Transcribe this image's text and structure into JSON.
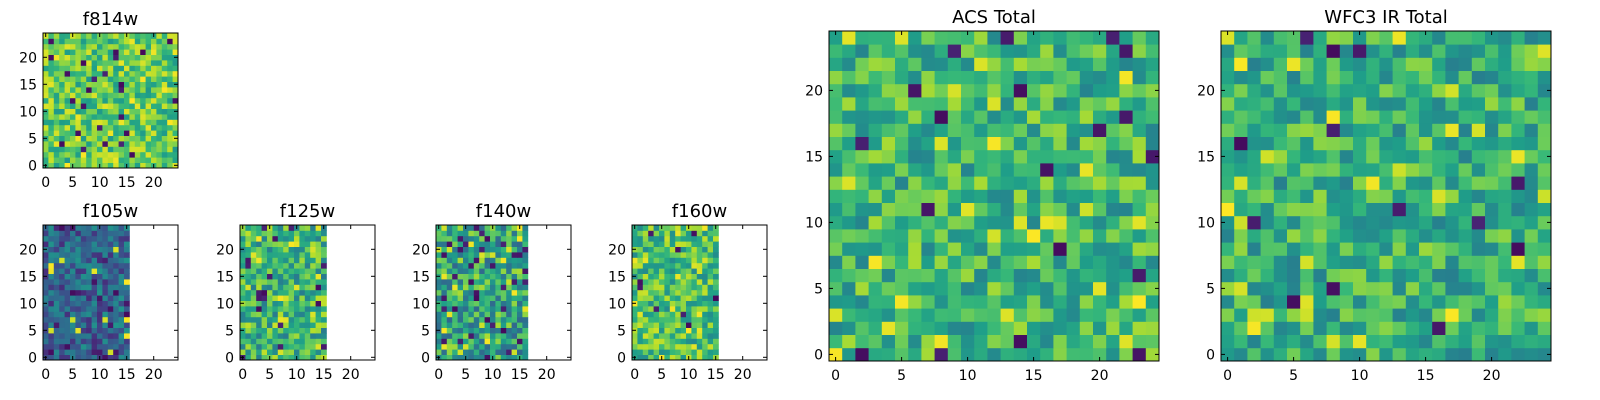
{
  "chart_data": [
    {
      "type": "heatmap",
      "title": "f814w",
      "xlim": [
        0,
        24
      ],
      "ylim": [
        0,
        24
      ],
      "data_x_max": 24,
      "xticks": [
        0,
        5,
        10,
        15,
        20
      ],
      "yticks": [
        0,
        5,
        10,
        15,
        20
      ],
      "seed": 7,
      "mean": 0.74,
      "spread": 0.42,
      "dark_prob": 0.03,
      "bright_prob": 0.07
    },
    {
      "type": "heatmap",
      "title": "f105w",
      "xlim": [
        0,
        24
      ],
      "ylim": [
        0,
        24
      ],
      "data_x_max": 15,
      "xticks": [
        0,
        5,
        10,
        15,
        20
      ],
      "yticks": [
        0,
        5,
        10,
        15,
        20
      ],
      "seed": 11,
      "mean": 0.32,
      "spread": 0.4,
      "dark_prob": 0.05,
      "bright_prob": 0.02
    },
    {
      "type": "heatmap",
      "title": "f125w",
      "xlim": [
        0,
        24
      ],
      "ylim": [
        0,
        24
      ],
      "data_x_max": 15,
      "xticks": [
        0,
        5,
        10,
        15,
        20
      ],
      "yticks": [
        0,
        5,
        10,
        15,
        20
      ],
      "seed": 19,
      "mean": 0.66,
      "spread": 0.5,
      "dark_prob": 0.04,
      "bright_prob": 0.05
    },
    {
      "type": "heatmap",
      "title": "f140w",
      "xlim": [
        0,
        24
      ],
      "ylim": [
        0,
        24
      ],
      "data_x_max": 16,
      "xticks": [
        0,
        5,
        10,
        15,
        20
      ],
      "yticks": [
        0,
        5,
        10,
        15,
        20
      ],
      "seed": 23,
      "mean": 0.6,
      "spread": 0.55,
      "dark_prob": 0.06,
      "bright_prob": 0.06
    },
    {
      "type": "heatmap",
      "title": "f160w",
      "xlim": [
        0,
        24
      ],
      "ylim": [
        0,
        24
      ],
      "data_x_max": 15,
      "xticks": [
        0,
        5,
        10,
        15,
        20
      ],
      "yticks": [
        0,
        5,
        10,
        15,
        20
      ],
      "seed": 31,
      "mean": 0.7,
      "spread": 0.45,
      "dark_prob": 0.03,
      "bright_prob": 0.05
    },
    {
      "type": "heatmap",
      "title": "ACS Total",
      "xlim": [
        0,
        24
      ],
      "ylim": [
        0,
        24
      ],
      "data_x_max": 24,
      "xticks": [
        0,
        5,
        10,
        15,
        20
      ],
      "yticks": [
        0,
        5,
        10,
        15,
        20
      ],
      "seed": 41,
      "mean": 0.66,
      "spread": 0.42,
      "dark_prob": 0.025,
      "bright_prob": 0.05
    },
    {
      "type": "heatmap",
      "title": "WFC3 IR Total",
      "xlim": [
        0,
        24
      ],
      "ylim": [
        0,
        24
      ],
      "data_x_max": 24,
      "xticks": [
        0,
        5,
        10,
        15,
        20
      ],
      "yticks": [
        0,
        5,
        10,
        15,
        20
      ],
      "seed": 53,
      "mean": 0.64,
      "spread": 0.42,
      "dark_prob": 0.025,
      "bright_prob": 0.05
    }
  ],
  "colormap": "viridis"
}
